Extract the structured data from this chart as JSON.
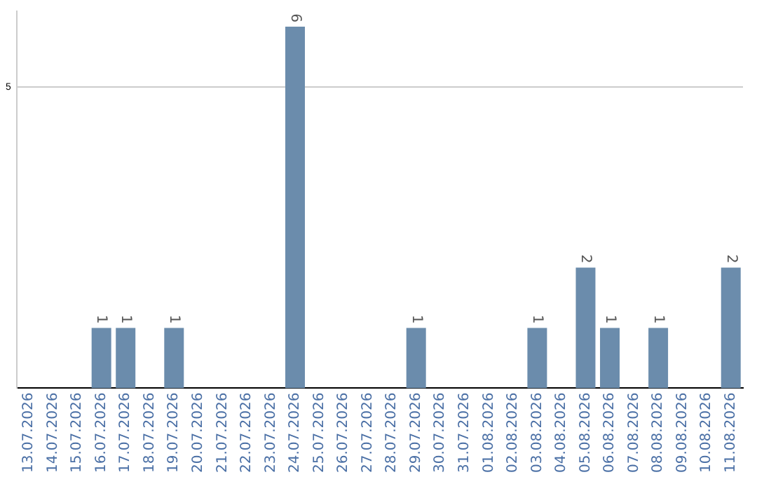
{
  "chart_data": {
    "type": "bar",
    "categories": [
      "13.07.2026",
      "14.07.2026",
      "15.07.2026",
      "16.07.2026",
      "17.07.2026",
      "18.07.2026",
      "19.07.2026",
      "20.07.2026",
      "21.07.2026",
      "22.07.2026",
      "23.07.2026",
      "24.07.2026",
      "25.07.2026",
      "26.07.2026",
      "27.07.2026",
      "28.07.2026",
      "29.07.2026",
      "30.07.2026",
      "31.07.2026",
      "01.08.2026",
      "02.08.2026",
      "03.08.2026",
      "04.08.2026",
      "05.08.2026",
      "06.08.2026",
      "07.08.2026",
      "08.08.2026",
      "09.08.2026",
      "10.08.2026",
      "11.08.2026"
    ],
    "values": [
      0,
      0,
      0,
      1,
      1,
      0,
      1,
      0,
      0,
      0,
      0,
      6,
      0,
      0,
      0,
      0,
      1,
      0,
      0,
      0,
      0,
      1,
      0,
      2,
      1,
      0,
      1,
      0,
      0,
      2
    ],
    "value_labels": [
      null,
      null,
      null,
      "1",
      "1",
      null,
      "1",
      null,
      null,
      null,
      null,
      "6",
      null,
      null,
      null,
      null,
      "1",
      null,
      null,
      null,
      null,
      "1",
      null,
      "2",
      "1",
      null,
      "1",
      null,
      null,
      "2"
    ],
    "color": "#6b8cac",
    "ylim": [
      0,
      6.25
    ],
    "yticks": [
      5
    ],
    "grid": "y",
    "legend": false
  }
}
